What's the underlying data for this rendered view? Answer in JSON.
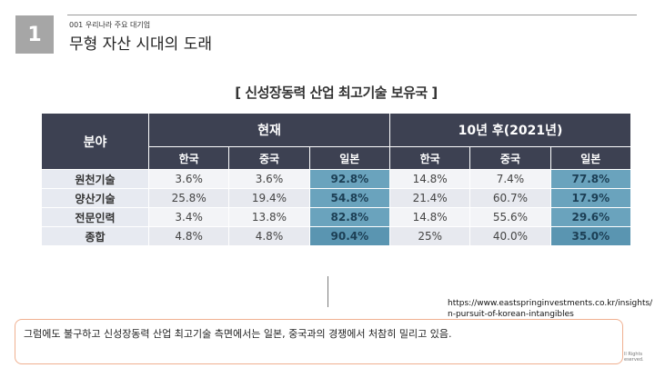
{
  "slide": {
    "number": "1",
    "subtitle": "001 우리나라 주요 대기업",
    "title": "무형 자산 시대의 도래"
  },
  "table": {
    "heading": "[ 신성장동력 산업 최고기술 보유국 ]",
    "field_header": "분야",
    "groups": [
      "현재",
      "10년 후(2021년)"
    ],
    "columns": [
      "한국",
      "중국",
      "일본",
      "한국",
      "중국",
      "일본"
    ],
    "rows": [
      {
        "label": "원천기술",
        "values": [
          "3.6%",
          "3.6%",
          "92.8%",
          "14.8%",
          "7.4%",
          "77.8%"
        ]
      },
      {
        "label": "양산기술",
        "values": [
          "25.8%",
          "19.4%",
          "54.8%",
          "21.4%",
          "60.7%",
          "17.9%"
        ]
      },
      {
        "label": "전문인력",
        "values": [
          "3.4%",
          "13.8%",
          "82.8%",
          "14.8%",
          "55.6%",
          "29.6%"
        ]
      },
      {
        "label": "종합",
        "values": [
          "4.8%",
          "4.8%",
          "90.4%",
          "25%",
          "40.0%",
          "35.0%"
        ]
      }
    ]
  },
  "source": {
    "line1": "https://www.eastspringinvestments.co.kr/insights/",
    "line2": "n-pursuit-of-korean-intangibles"
  },
  "comment": "그럼에도 불구하고 신성장동력 산업 최고기술 측면에서는 일본, 중국과의 경쟁에서 처참히 밀리고 있음.",
  "rights": {
    "line1": "ll Rights",
    "line2": "eserved."
  }
}
